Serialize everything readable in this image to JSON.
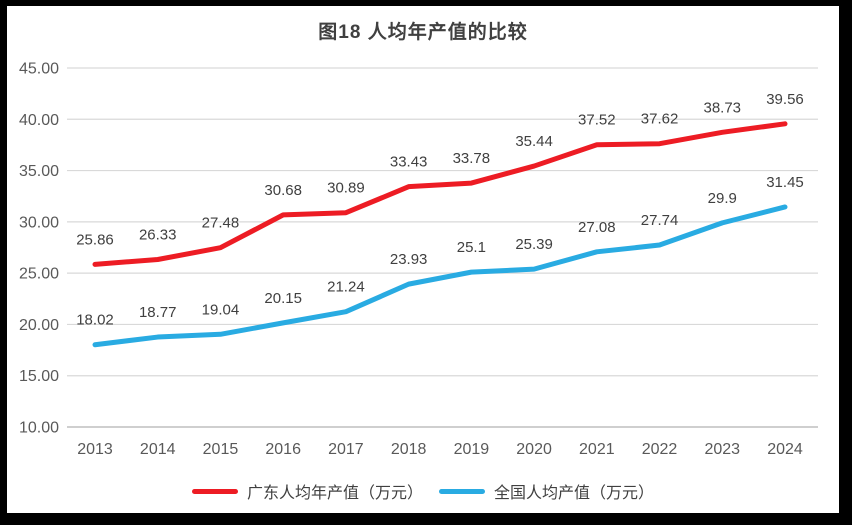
{
  "chart_data": {
    "type": "line",
    "title": "图18 人均年产值的比较",
    "categories": [
      "2013",
      "2014",
      "2015",
      "2016",
      "2017",
      "2018",
      "2019",
      "2020",
      "2021",
      "2022",
      "2023",
      "2024"
    ],
    "series": [
      {
        "name": "广东人均年产值（万元）",
        "color": "#ED1C24",
        "values": [
          25.86,
          26.33,
          27.48,
          30.68,
          30.89,
          33.43,
          33.78,
          35.44,
          37.52,
          37.62,
          38.73,
          39.56
        ]
      },
      {
        "name": "全国人均产值（万元）",
        "color": "#29ABE2",
        "values": [
          18.02,
          18.77,
          19.04,
          20.15,
          21.24,
          23.93,
          25.1,
          25.39,
          27.08,
          27.74,
          29.9,
          31.45
        ]
      }
    ],
    "xlabel": "",
    "ylabel": "",
    "ylim": [
      10,
      45
    ],
    "y_tick_labels": [
      "45.00",
      "40.00",
      "35.00",
      "30.00",
      "25.00",
      "20.00",
      "15.00",
      "10.00"
    ],
    "grid": true,
    "data_labels": true,
    "legend_position": "bottom"
  },
  "style": {
    "frame_color": "#000000",
    "background": "#FFFFFF",
    "gridline_color": "#D9D9D9",
    "axis_line_color": "#BFBFBF",
    "tick_text_color": "#595959",
    "data_label_color": "#404040",
    "title_color": "#404040",
    "line_width": 5
  }
}
